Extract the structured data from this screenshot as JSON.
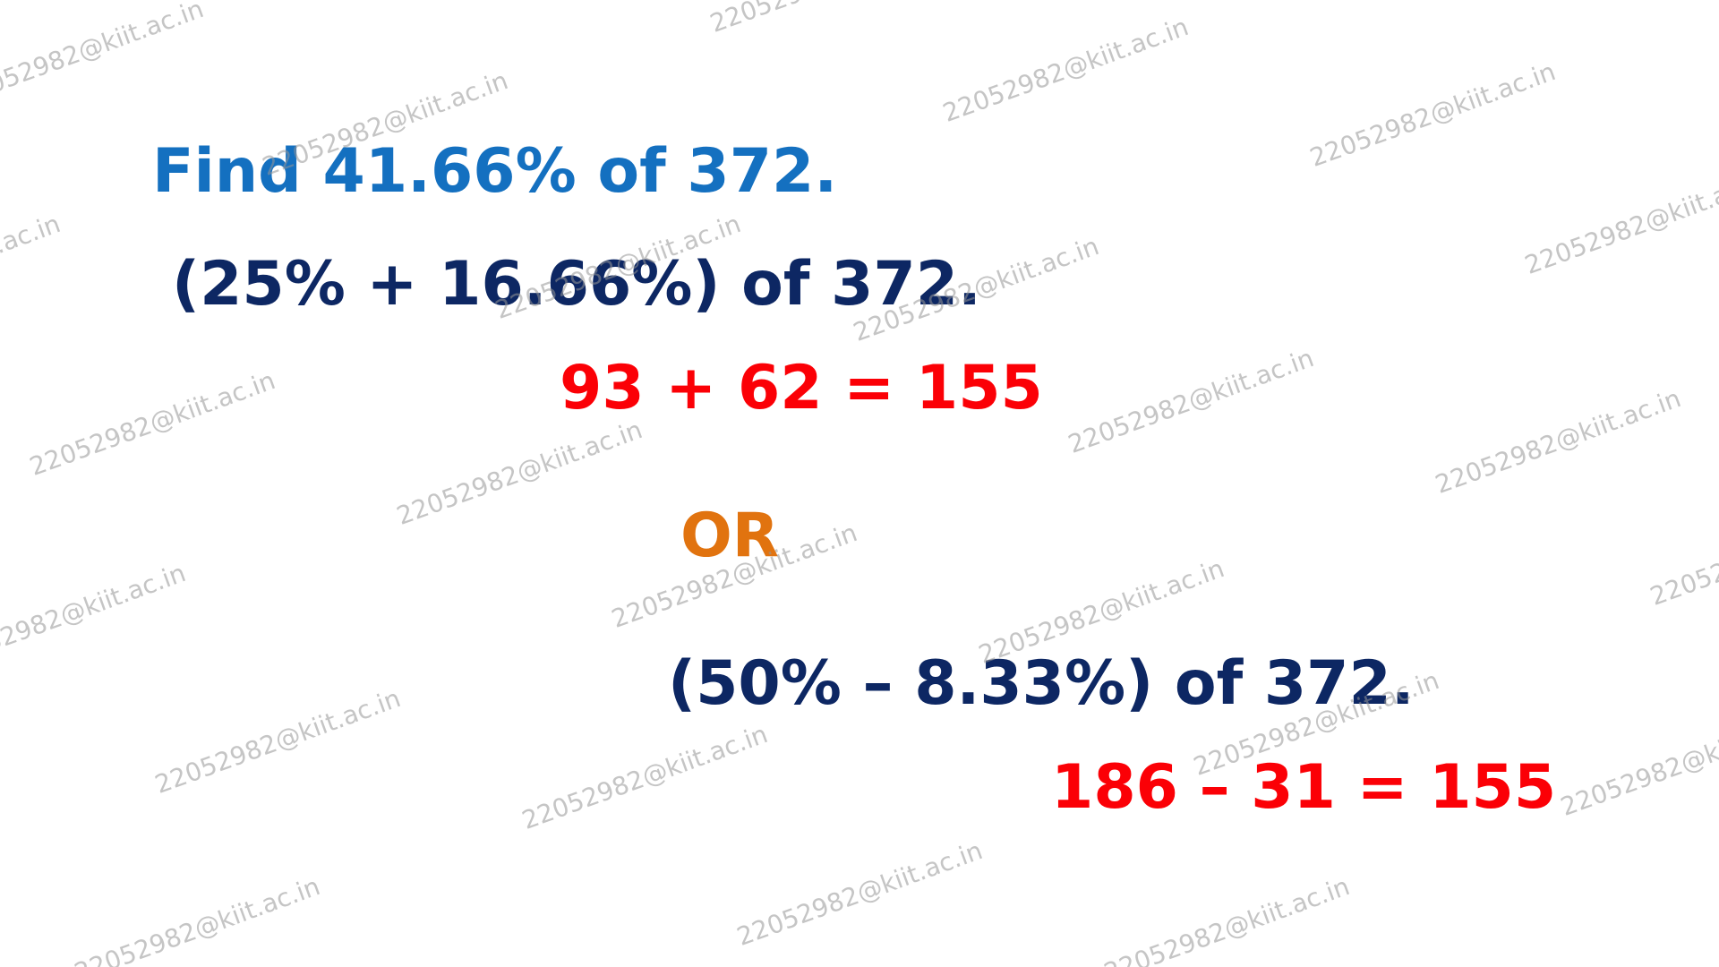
{
  "colors": {
    "title": "#1470c0",
    "expression": "#0d2763",
    "result": "#fb0006",
    "or": "#e1730f",
    "watermark": "#999999"
  },
  "problem": {
    "title": "Find 41.66% of 372.",
    "method1": {
      "expression": "(25% + 16.66%) of 372.",
      "result": "93 + 62 = 155"
    },
    "separator": "OR",
    "method2": {
      "expression": "(50% – 8.33%) of 372.",
      "result": "186 – 31 = 155"
    }
  },
  "watermark": {
    "text": "22052982@kiit.ac.in"
  }
}
